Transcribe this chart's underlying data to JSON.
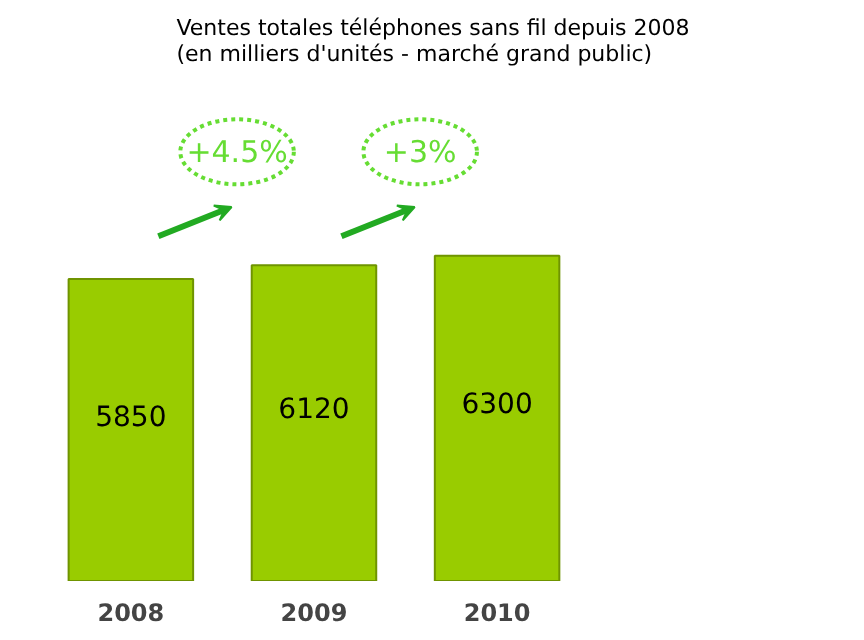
{
  "chart_data": {
    "type": "bar",
    "title": "Ventes totales téléphones sans fil depuis 2008\n(en milliers d'unités - marché grand public)",
    "categories": [
      "2008",
      "2009",
      "2010"
    ],
    "values": [
      5850,
      6120,
      6300
    ],
    "color": "#99cc00",
    "data_labels": true,
    "grid": false,
    "annotations": [
      "+4.5%",
      "+3%"
    ]
  }
}
